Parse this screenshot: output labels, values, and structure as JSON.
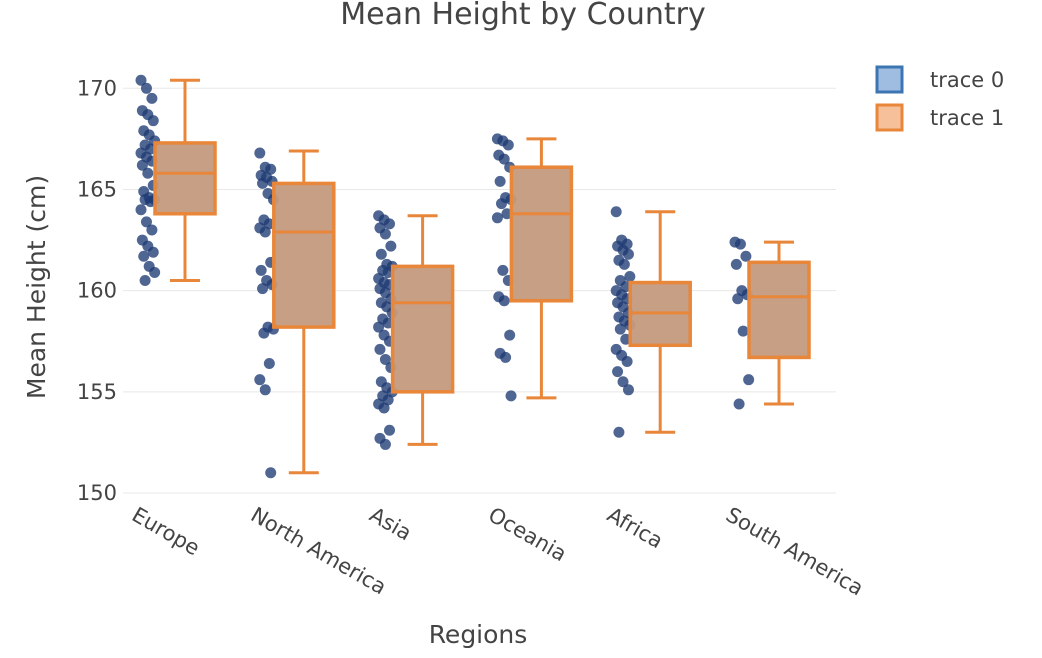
{
  "chart_data": {
    "type": "box",
    "title": "Mean Height by Country",
    "xlabel": "Regions",
    "ylabel": "Mean Height (cm)",
    "ylim": [
      150,
      171.3
    ],
    "yticks": [
      150,
      155,
      160,
      165,
      170
    ],
    "grid": true,
    "legend_position": "top-right",
    "categories": [
      "Europe",
      "North America",
      "Asia",
      "Oceania",
      "Africa",
      "South America"
    ],
    "colors": {
      "points": "#1f3b73",
      "box_line": "#e8863a",
      "box_fill": "#c49a7e",
      "legend_trace0": "#3d75b3",
      "legend_trace0_fill": "#9fbde0",
      "legend_trace1_fill": "#f6c09a",
      "grid": "#e8e8e8"
    },
    "series": [
      {
        "name": "trace 0",
        "kind": "points",
        "values": [
          [
            170.4,
            170.0,
            169.5,
            168.9,
            168.7,
            168.4,
            167.9,
            167.7,
            167.4,
            167.2,
            167.0,
            166.8,
            166.6,
            166.4,
            166.2,
            165.8,
            165.2,
            164.9,
            164.6,
            164.5,
            164.5,
            164.4,
            164.0,
            163.4,
            163.0,
            162.5,
            162.2,
            161.9,
            161.7,
            161.2,
            160.9,
            160.5
          ],
          [
            166.8,
            166.1,
            166.0,
            165.7,
            165.6,
            165.4,
            165.3,
            164.8,
            164.5,
            163.5,
            163.3,
            163.1,
            162.9,
            161.4,
            161.0,
            160.5,
            160.3,
            160.1,
            158.2,
            158.1,
            157.9,
            156.4,
            155.6,
            155.1,
            151.0
          ],
          [
            163.7,
            163.5,
            163.3,
            163.1,
            162.8,
            162.2,
            161.8,
            161.3,
            161.2,
            161.0,
            160.9,
            160.6,
            160.4,
            160.3,
            160.1,
            159.9,
            159.6,
            159.4,
            159.2,
            158.9,
            158.6,
            158.4,
            158.2,
            157.8,
            157.5,
            157.1,
            156.6,
            156.2,
            155.5,
            155.2,
            155.0,
            154.8,
            154.6,
            154.4,
            154.2,
            153.1,
            152.7,
            152.4
          ],
          [
            167.5,
            167.4,
            167.2,
            166.7,
            166.5,
            166.1,
            165.4,
            164.6,
            164.5,
            164.3,
            163.8,
            163.6,
            161.0,
            160.5,
            159.7,
            159.5,
            157.8,
            156.9,
            156.7,
            154.8
          ],
          [
            163.9,
            162.5,
            162.3,
            162.2,
            162.0,
            161.8,
            161.5,
            161.3,
            160.7,
            160.5,
            160.2,
            160.0,
            159.8,
            159.6,
            159.4,
            159.2,
            158.9,
            158.7,
            158.5,
            158.3,
            158.1,
            157.6,
            157.1,
            156.8,
            156.5,
            156.0,
            155.5,
            155.1,
            153.0
          ],
          [
            162.4,
            162.3,
            161.7,
            161.3,
            160.0,
            159.8,
            159.6,
            158.0,
            155.6,
            154.4
          ]
        ]
      },
      {
        "name": "trace 1",
        "kind": "box",
        "boxes": [
          {
            "min": 160.5,
            "q1": 163.8,
            "median": 165.8,
            "q3": 167.3,
            "max": 170.4
          },
          {
            "min": 151.0,
            "q1": 158.2,
            "median": 162.9,
            "q3": 165.3,
            "max": 166.9
          },
          {
            "min": 152.4,
            "q1": 155.0,
            "median": 159.4,
            "q3": 161.2,
            "max": 163.7
          },
          {
            "min": 154.7,
            "q1": 159.5,
            "median": 163.8,
            "q3": 166.1,
            "max": 167.5
          },
          {
            "min": 153.0,
            "q1": 157.3,
            "median": 158.9,
            "q3": 160.4,
            "max": 163.9
          },
          {
            "min": 154.4,
            "q1": 156.7,
            "median": 159.7,
            "q3": 161.4,
            "max": 162.4
          }
        ]
      }
    ]
  }
}
